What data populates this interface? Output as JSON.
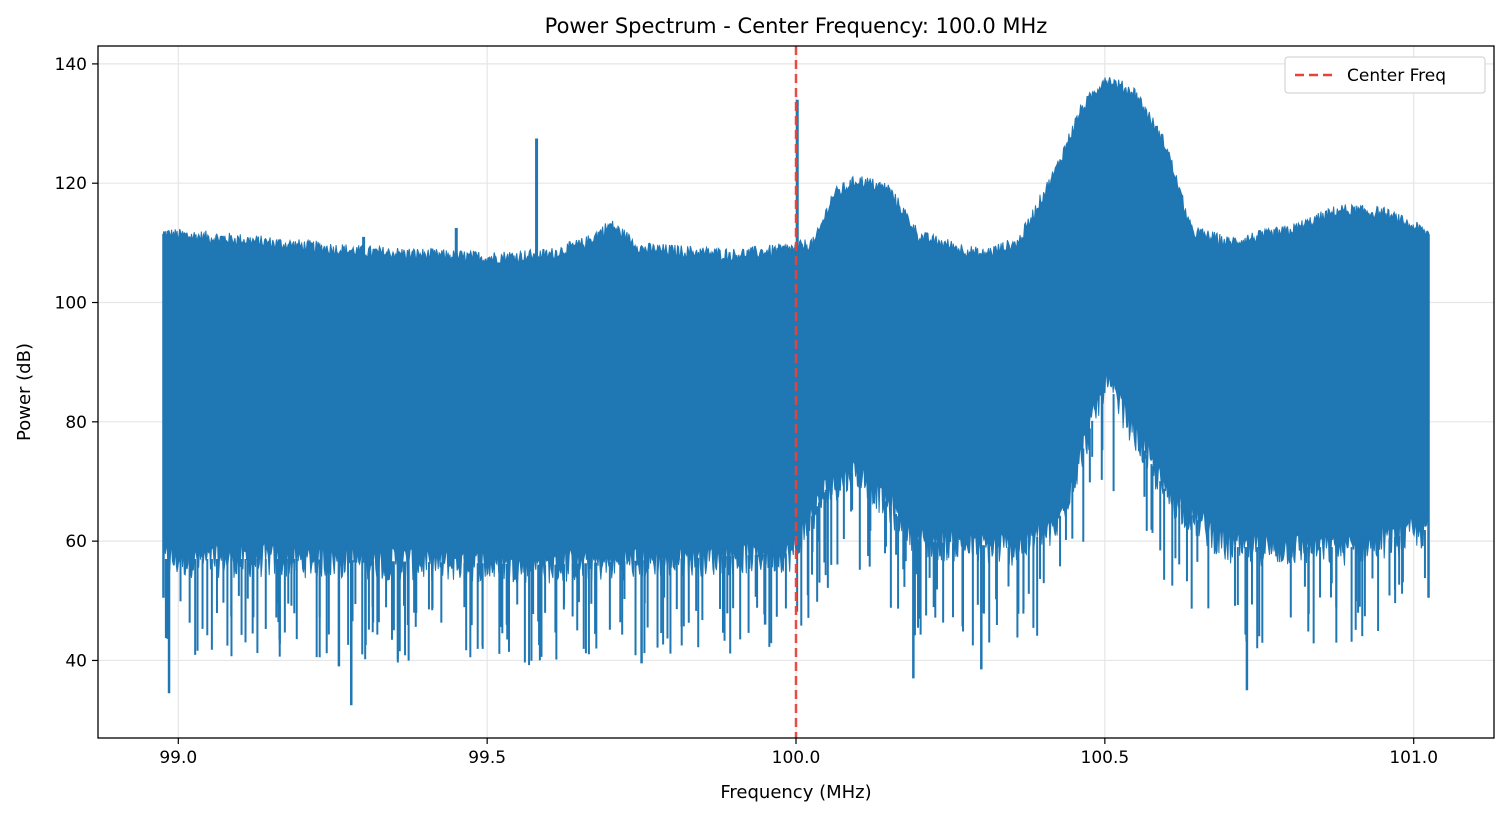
{
  "chart_data": {
    "type": "line",
    "title": "Power Spectrum - Center Frequency: 100.0 MHz",
    "xlabel": "Frequency (MHz)",
    "ylabel": "Power (dB)",
    "xlim": [
      98.87,
      101.13
    ],
    "ylim": [
      27,
      143
    ],
    "x_ticks": [
      99.0,
      99.5,
      100.0,
      100.5,
      101.0
    ],
    "x_tick_labels": [
      "99.0",
      "99.5",
      "100.0",
      "100.5",
      "101.0"
    ],
    "y_ticks": [
      40,
      60,
      80,
      100,
      120,
      140
    ],
    "y_tick_labels": [
      "40",
      "60",
      "80",
      "100",
      "120",
      "140"
    ],
    "grid": true,
    "legend_position": "top-right",
    "series": [
      {
        "color": "#1f77b4",
        "x_range": [
          98.976,
          101.024
        ],
        "envelope_upper": [
          [
            98.976,
            111.5
          ],
          [
            99.1,
            110.5
          ],
          [
            99.3,
            108.5
          ],
          [
            99.5,
            107.5
          ],
          [
            99.6,
            108
          ],
          [
            99.66,
            110
          ],
          [
            99.7,
            113
          ],
          [
            99.75,
            109
          ],
          [
            99.9,
            108
          ],
          [
            99.995,
            109
          ],
          [
            100.03,
            110
          ],
          [
            100.06,
            118
          ],
          [
            100.1,
            120.5
          ],
          [
            100.15,
            119
          ],
          [
            100.2,
            111
          ],
          [
            100.3,
            108
          ],
          [
            100.36,
            110
          ],
          [
            100.42,
            122
          ],
          [
            100.46,
            132
          ],
          [
            100.5,
            137.5
          ],
          [
            100.55,
            135
          ],
          [
            100.6,
            126
          ],
          [
            100.64,
            112
          ],
          [
            100.7,
            110
          ],
          [
            100.8,
            112
          ],
          [
            100.88,
            115.5
          ],
          [
            100.95,
            115
          ],
          [
            101.024,
            111.5
          ]
        ],
        "envelope_lower": [
          [
            98.976,
            55
          ],
          [
            99.2,
            55
          ],
          [
            99.6,
            54
          ],
          [
            99.995,
            56
          ],
          [
            100.05,
            67
          ],
          [
            100.1,
            70
          ],
          [
            100.2,
            58
          ],
          [
            100.35,
            57
          ],
          [
            100.42,
            60
          ],
          [
            100.47,
            75
          ],
          [
            100.5,
            85
          ],
          [
            100.53,
            80
          ],
          [
            100.6,
            66
          ],
          [
            100.7,
            57
          ],
          [
            100.9,
            57
          ],
          [
            101.024,
            60
          ]
        ],
        "spikes": [
          [
            99.58,
            127.5
          ],
          [
            100.002,
            134
          ],
          [
            99.45,
            112.5
          ],
          [
            99.3,
            111
          ]
        ],
        "dips": [
          [
            98.985,
            34.5
          ],
          [
            99.28,
            32.5
          ],
          [
            99.26,
            39
          ],
          [
            99.75,
            39.5
          ],
          [
            100.19,
            37
          ],
          [
            100.73,
            35
          ],
          [
            99.95,
            46
          ],
          [
            100.3,
            38.5
          ]
        ]
      },
      {
        "name": "Center Freq",
        "color": "#e8433a",
        "style": "dashed",
        "x": [
          100.0,
          100.0
        ],
        "y": [
          27,
          143
        ]
      }
    ]
  }
}
